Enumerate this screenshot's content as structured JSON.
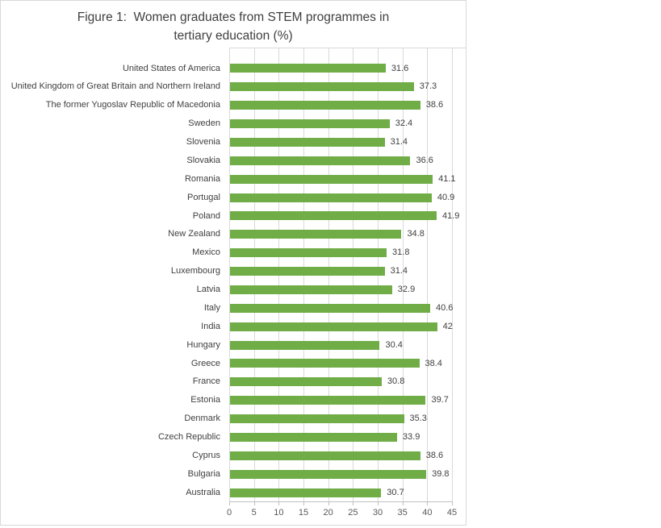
{
  "chart_data": {
    "type": "bar",
    "orientation": "horizontal",
    "title": "Figure 1:  Women graduates from STEM programmes in tertiary education (%)",
    "categories": [
      "United States of America",
      "United Kingdom of Great Britain and Northern Ireland",
      "The former Yugoslav Republic of Macedonia",
      "Sweden",
      "Slovenia",
      "Slovakia",
      "Romania",
      "Portugal",
      "Poland",
      "New Zealand",
      "Mexico",
      "Luxembourg",
      "Latvia",
      "Italy",
      "India",
      "Hungary",
      "Greece",
      "France",
      "Estonia",
      "Denmark",
      "Czech Republic",
      "Cyprus",
      "Bulgaria",
      "Australia"
    ],
    "values": [
      31.6,
      37.3,
      38.6,
      32.4,
      31.4,
      36.6,
      41.1,
      40.9,
      41.9,
      34.8,
      31.8,
      31.4,
      32.9,
      40.6,
      42,
      30.4,
      38.4,
      30.8,
      39.7,
      35.3,
      33.9,
      38.6,
      39.8,
      30.7
    ],
    "xlabel": "",
    "ylabel": "",
    "xlim": [
      0,
      45
    ],
    "xticks": [
      0,
      5,
      10,
      15,
      20,
      25,
      30,
      35,
      40,
      45
    ],
    "grid": true,
    "value_labels": true,
    "legend": false,
    "bar_color": "#70AD47"
  },
  "colors": {
    "bar": "#70AD47",
    "grid": "#D9D9D9",
    "axis": "#BFBFBF",
    "chart_border": "#D9D9D9",
    "title_text": "#404040",
    "label_text": "#404040",
    "tick_text": "#595959",
    "background": "#FFFFFF"
  }
}
